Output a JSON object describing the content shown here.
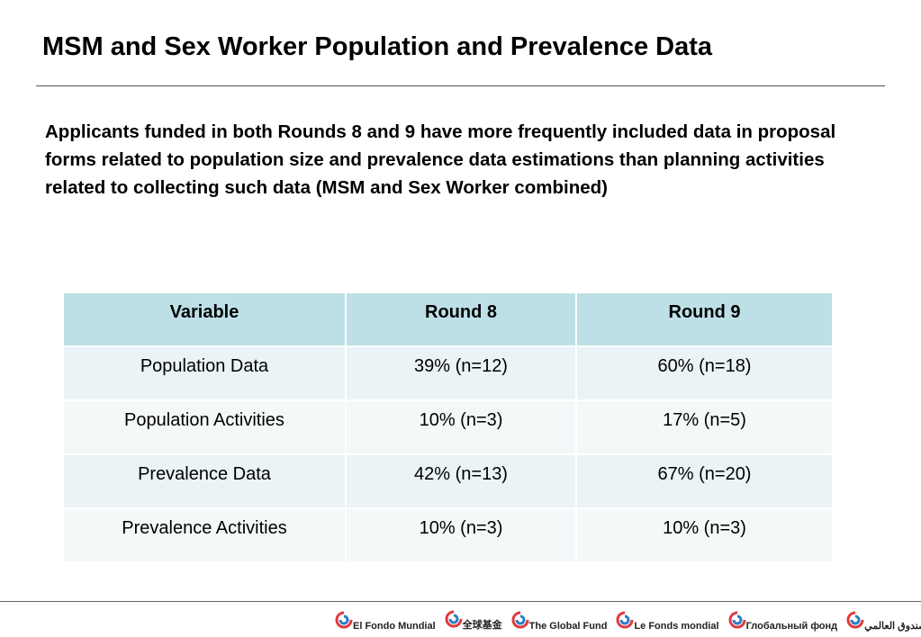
{
  "header": {
    "title": "MSM and Sex Worker Population and Prevalence Data"
  },
  "body": {
    "text": "Applicants funded in both Rounds 8 and 9 have more frequently included data in proposal forms related to population size and prevalence data estimations than planning activities related to collecting such data (MSM and Sex Worker combined)"
  },
  "table": {
    "columns": [
      "Variable",
      "Round 8",
      "Round 9"
    ],
    "rows": [
      [
        "Population Data",
        "39% (n=12)",
        "60% (n=18)"
      ],
      [
        "Population Activities",
        "10% (n=3)",
        "17% (n=5)"
      ],
      [
        "Prevalence Data",
        "42% (n=13)",
        "67% (n=20)"
      ],
      [
        "Prevalence Activities",
        "10% (n=3)",
        "10% (n=3)"
      ]
    ]
  },
  "footer": {
    "logos": [
      "El Fondo Mundial",
      "全球基金",
      "The Global Fund",
      "Le Fonds mondial",
      "Глобальный фонд",
      "الصندوق العالمي"
    ]
  }
}
